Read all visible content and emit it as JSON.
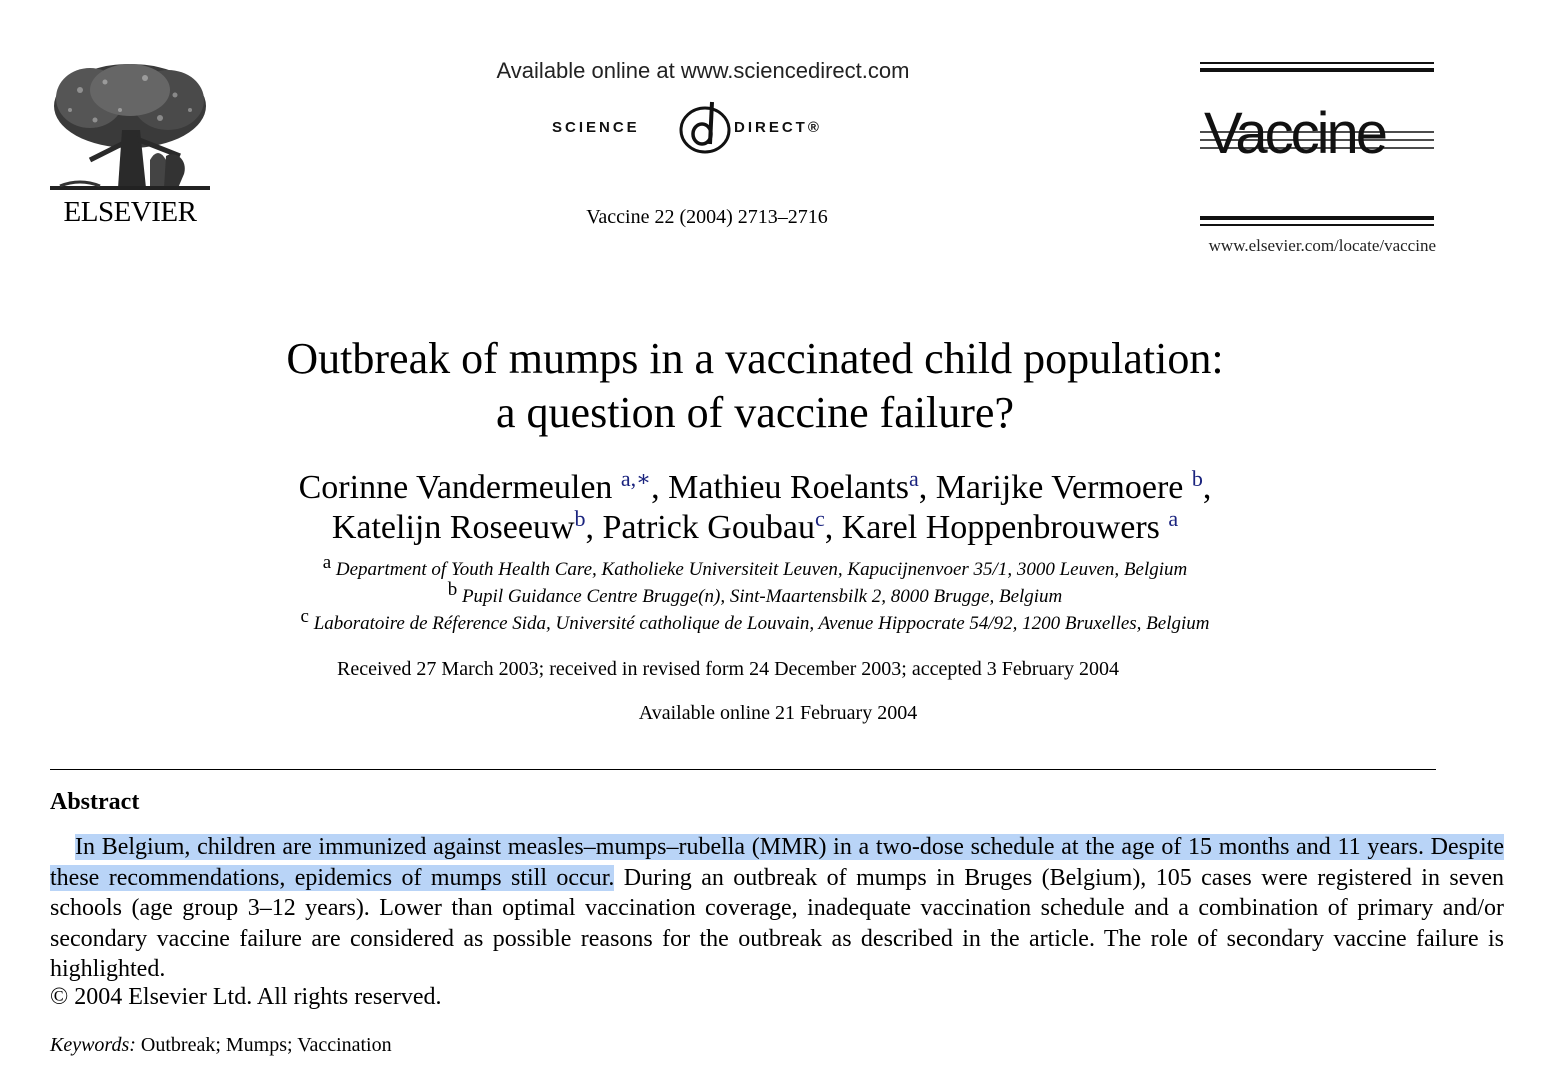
{
  "header": {
    "publisher_name": "ELSEVIER",
    "sd_available": "Available online at www.sciencedirect.com",
    "sd_left": "SCIENCE",
    "sd_right": "DIRECT®",
    "journal_ref": "Vaccine 22 (2004) 2713–2716",
    "journal_logo_text": "Vaccine",
    "journal_url": "www.elsevier.com/locate/vaccine"
  },
  "article": {
    "title_line1": "Outbreak of mumps in a vaccinated child population:",
    "title_line2": "a question of vaccine failure?",
    "authors": [
      {
        "name": "Corinne Vandermeulen",
        "aff": "a,∗"
      },
      {
        "name": "Mathieu Roelants",
        "aff": "a"
      },
      {
        "name": "Marijke Vermoere",
        "aff": "b"
      },
      {
        "name": "Katelijn Roseeuw",
        "aff": "b"
      },
      {
        "name": "Patrick Goubau",
        "aff": "c"
      },
      {
        "name": "Karel Hoppenbrouwers",
        "aff": "a"
      }
    ],
    "affiliations": [
      {
        "key": "a",
        "text": "Department of Youth Health Care, Katholieke Universiteit Leuven, Kapucijnenvoer 35/1, 3000 Leuven, Belgium"
      },
      {
        "key": "b",
        "text": "Pupil Guidance Centre Brugge(n), Sint-Maartensbilk 2, 8000 Brugge, Belgium"
      },
      {
        "key": "c",
        "text": "Laboratoire de Réference Sida, Université catholique de Louvain, Avenue Hippocrate 54/92, 1200 Bruxelles, Belgium"
      }
    ],
    "received": "Received 27 March 2003; received in revised form 24 December 2003; accepted 3 February 2004",
    "available_online": "Available online 21 February 2004"
  },
  "abstract": {
    "heading": "Abstract",
    "highlighted_text": "In Belgium, children are immunized against measles–mumps–rubella (MMR) in a two-dose schedule at the age of 15 months and 11 years. Despite these recommendations, epidemics of mumps still occur.",
    "rest_text": " During an outbreak of mumps in Bruges (Belgium), 105 cases were registered in seven schools (age group 3–12 years). Lower than optimal vaccination coverage, inadequate vaccination schedule and a combination of primary and/or secondary vaccine failure are considered as possible reasons for the outbreak as described in the article. The role of secondary vaccine failure is highlighted.",
    "copyright": "© 2004 Elsevier Ltd. All rights reserved.",
    "highlight_color": "#b9d4f7"
  },
  "keywords": {
    "label": "Keywords:",
    "value": "Outbreak; Mumps; Vaccination"
  }
}
